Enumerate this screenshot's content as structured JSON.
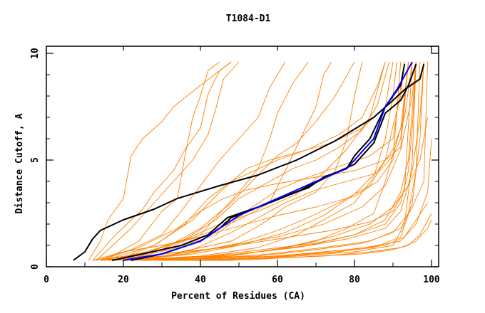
{
  "chart_data": {
    "type": "line",
    "title": "T1084-D1",
    "xlabel": "Percent of Residues (CA)",
    "ylabel": "Distance Cutoff, A",
    "xlim": [
      0,
      100
    ],
    "ylim": [
      0,
      10
    ],
    "xticks": [
      "0",
      "20",
      "40",
      "60",
      "80",
      "100"
    ],
    "yticks": [
      "0",
      "5",
      "10"
    ],
    "colors": {
      "other": "#ff8000",
      "highlight_black": "#000000",
      "highlight_blue": "#0000ff"
    },
    "series_other": [
      [
        11,
        0.3,
        14,
        1.2,
        16,
        2.2,
        20,
        3.2,
        22,
        5.2,
        25,
        6.0,
        30,
        6.8,
        33,
        7.5,
        40,
        8.5,
        48,
        9.6
      ],
      [
        12,
        0.3,
        18,
        1.5,
        25,
        2.7,
        28,
        3.5,
        33,
        4.5,
        36,
        5.5,
        40,
        6.5,
        42,
        8.1,
        45,
        9.2,
        48,
        9.6
      ],
      [
        13,
        0.3,
        22,
        1.8,
        28,
        3.0,
        33,
        4.0,
        38,
        5.0,
        42,
        6.2,
        44,
        7.4,
        46,
        8.8,
        50,
        9.6
      ],
      [
        15,
        0.3,
        24,
        1.2,
        30,
        2.6,
        34,
        3.2,
        36,
        5.2,
        38,
        7.0,
        40,
        8.0,
        42,
        9.2,
        45,
        9.6
      ],
      [
        14,
        0.3,
        30,
        0.8,
        40,
        1.5,
        45,
        2.5,
        50,
        3.5,
        55,
        4.6,
        58,
        6.0,
        60,
        7.2,
        64,
        8.6,
        68,
        9.6
      ],
      [
        18,
        0.3,
        30,
        0.9,
        42,
        1.6,
        50,
        2.2,
        58,
        3.0,
        62,
        4.5,
        66,
        6.0,
        70,
        7.5,
        72,
        9.0,
        74,
        9.6
      ],
      [
        16,
        0.3,
        35,
        0.7,
        48,
        1.2,
        56,
        2.0,
        62,
        2.8,
        70,
        3.5,
        75,
        4.5,
        78,
        6.0,
        80,
        8.0,
        82,
        9.6
      ],
      [
        20,
        0.3,
        40,
        0.5,
        55,
        0.9,
        65,
        1.5,
        72,
        2.2,
        80,
        3.0,
        85,
        4.2,
        88,
        6.0,
        90,
        8.0,
        91,
        9.6
      ],
      [
        22,
        0.3,
        45,
        0.5,
        60,
        0.8,
        70,
        1.2,
        78,
        1.8,
        85,
        2.5,
        88,
        4.0,
        92,
        6.5,
        94,
        9.6
      ],
      [
        12,
        0.3,
        25,
        0.6,
        35,
        1.2,
        45,
        2.0,
        55,
        2.6,
        65,
        3.4,
        72,
        4.4,
        78,
        5.5,
        84,
        7.0,
        88,
        9.6
      ],
      [
        14,
        0.3,
        30,
        0.5,
        45,
        0.9,
        60,
        1.4,
        72,
        2.0,
        82,
        2.8,
        88,
        3.8,
        92,
        5.5,
        95,
        8.0,
        96,
        9.6
      ],
      [
        17,
        0.3,
        35,
        0.4,
        50,
        0.6,
        65,
        0.9,
        78,
        1.3,
        88,
        1.8,
        92,
        2.6,
        95,
        4.5,
        97,
        7.0,
        98,
        9.6
      ],
      [
        20,
        0.3,
        40,
        0.4,
        55,
        0.5,
        70,
        0.8,
        82,
        1.1,
        90,
        1.6,
        94,
        2.5,
        96,
        4.5,
        97,
        9.6
      ],
      [
        25,
        0.3,
        45,
        0.4,
        60,
        0.5,
        75,
        0.7,
        85,
        0.9,
        92,
        1.4,
        95,
        3.0,
        97,
        6.0,
        98,
        9.6
      ],
      [
        30,
        0.3,
        50,
        0.35,
        65,
        0.5,
        80,
        0.7,
        90,
        1.0,
        93,
        2.0,
        95,
        5.0,
        96,
        9.6
      ],
      [
        18,
        0.3,
        30,
        0.8,
        40,
        1.8,
        48,
        3.0,
        55,
        4.3,
        60,
        5.2,
        65,
        5.8,
        70,
        6.8,
        75,
        8.0,
        80,
        9.6
      ],
      [
        15,
        0.3,
        28,
        1.0,
        38,
        2.2,
        45,
        3.5,
        52,
        4.6,
        58,
        5.0,
        66,
        5.4,
        74,
        5.8,
        82,
        6.5,
        88,
        7.5,
        90,
        9.6
      ],
      [
        19,
        0.3,
        32,
        0.8,
        44,
        1.5,
        52,
        2.6,
        60,
        3.6,
        68,
        4.2,
        76,
        4.7,
        84,
        5.2,
        90,
        6.0,
        93,
        9.6
      ],
      [
        21,
        0.3,
        38,
        0.6,
        50,
        1.0,
        62,
        1.6,
        72,
        2.4,
        80,
        3.4,
        86,
        4.5,
        90,
        5.5,
        93,
        7.0,
        95,
        9.6
      ],
      [
        24,
        0.3,
        40,
        0.4,
        55,
        0.7,
        68,
        1.0,
        80,
        1.5,
        88,
        2.2,
        92,
        3.5,
        94,
        5.0,
        96,
        9.6
      ],
      [
        26,
        0.3,
        44,
        0.4,
        58,
        0.6,
        72,
        0.9,
        84,
        1.2,
        92,
        1.8,
        95,
        2.8,
        98,
        4.0,
        99,
        9.6
      ],
      [
        28,
        0.3,
        48,
        0.3,
        62,
        0.5,
        76,
        0.7,
        86,
        1.0,
        92,
        1.2,
        96,
        2.0,
        99,
        3.5,
        100,
        6.0
      ],
      [
        13,
        0.3,
        22,
        0.8,
        30,
        1.5,
        35,
        2.6,
        40,
        3.8,
        45,
        5.0,
        50,
        6.0,
        55,
        7.0,
        58,
        8.4,
        62,
        9.6
      ],
      [
        15,
        0.3,
        26,
        0.7,
        36,
        1.3,
        44,
        2.2,
        50,
        3.2,
        58,
        4.0,
        64,
        4.6,
        70,
        5.0,
        76,
        5.6,
        82,
        6.4,
        86,
        7.6,
        89,
        9.6
      ],
      [
        12,
        0.3,
        20,
        0.7,
        30,
        1.0,
        40,
        1.4,
        50,
        1.9,
        60,
        2.4,
        70,
        2.8,
        80,
        3.3,
        86,
        4.0,
        90,
        5.0,
        92,
        9.6
      ],
      [
        16,
        0.3,
        30,
        0.6,
        46,
        0.9,
        60,
        1.3,
        74,
        1.7,
        84,
        2.1,
        90,
        2.6,
        93,
        3.6,
        95,
        9.6
      ],
      [
        22,
        0.3,
        42,
        0.5,
        56,
        0.8,
        70,
        1.1,
        80,
        1.5,
        88,
        2.0,
        92,
        3.0,
        94,
        4.5,
        95,
        6.5,
        96,
        9.6
      ],
      [
        35,
        0.3,
        55,
        0.35,
        70,
        0.5,
        82,
        0.6,
        90,
        0.8,
        94,
        1.0,
        97,
        1.5,
        100,
        2.5
      ],
      [
        32,
        0.3,
        52,
        0.4,
        66,
        0.6,
        78,
        0.8,
        88,
        1.0,
        93,
        1.4,
        96,
        2.2,
        99,
        3.0
      ],
      [
        30,
        0.3,
        48,
        0.5,
        62,
        0.9,
        74,
        1.4,
        84,
        2.0,
        90,
        2.8,
        94,
        3.8,
        97,
        5.0,
        99,
        7.0
      ],
      [
        18,
        0.3,
        28,
        1.0,
        36,
        2.0,
        42,
        3.2,
        48,
        4.0,
        54,
        4.5,
        60,
        5.0,
        68,
        5.5,
        76,
        6.2,
        82,
        7.0,
        86,
        8.5,
        88,
        9.6
      ],
      [
        20,
        0.3,
        36,
        0.6,
        50,
        1.1,
        60,
        1.7,
        68,
        2.3,
        76,
        3.0,
        84,
        3.8,
        88,
        5.0,
        90,
        6.6,
        92,
        8.0,
        93,
        9.6
      ],
      [
        14,
        0.3,
        24,
        0.9,
        34,
        1.8,
        40,
        2.6,
        46,
        3.2,
        52,
        3.6,
        60,
        3.9,
        70,
        4.2,
        80,
        4.5,
        88,
        5.0,
        92,
        5.6,
        94,
        9.6
      ],
      [
        40,
        0.3,
        58,
        0.4,
        72,
        0.5,
        84,
        0.7,
        92,
        0.9,
        96,
        1.2,
        99,
        1.8,
        100,
        2.2
      ],
      [
        26,
        0.3,
        38,
        0.8,
        48,
        1.6,
        56,
        2.4,
        62,
        3.0,
        70,
        3.6,
        78,
        4.0,
        86,
        4.4,
        90,
        5.2,
        92,
        6.0,
        94,
        9.6
      ]
    ],
    "series_black": [
      [
        7,
        0.3,
        10,
        0.7,
        12,
        1.3,
        14,
        1.7,
        20,
        2.2,
        28,
        2.7,
        34,
        3.2,
        45,
        3.8,
        55,
        4.3,
        65,
        5.0,
        75,
        5.9,
        85,
        7.0,
        90,
        7.8,
        93,
        8.3,
        97,
        8.8,
        98,
        9.5
      ],
      [
        17,
        0.3,
        25,
        0.6,
        35,
        1.0,
        42,
        1.5,
        47,
        2.3,
        55,
        2.8,
        60,
        3.2,
        68,
        3.7,
        72,
        4.2,
        78,
        4.6,
        80,
        5.2,
        84,
        6.0,
        88,
        7.5,
        92,
        8.5,
        93,
        9.5
      ],
      [
        22,
        0.3,
        30,
        0.6,
        40,
        1.2,
        45,
        1.8,
        48,
        2.3,
        58,
        3.0,
        65,
        3.5,
        75,
        4.4,
        80,
        4.8,
        85,
        5.8,
        88,
        7.2,
        92,
        7.8,
        94,
        8.5,
        96,
        9.5
      ]
    ],
    "series_blue": [
      [
        20,
        0.3,
        30,
        0.6,
        40,
        1.2,
        45,
        1.8,
        50,
        2.4,
        60,
        3.2,
        70,
        4.0,
        78,
        4.6,
        85,
        6.0,
        88,
        7.5,
        91,
        8.3,
        95,
        9.6
      ]
    ]
  }
}
